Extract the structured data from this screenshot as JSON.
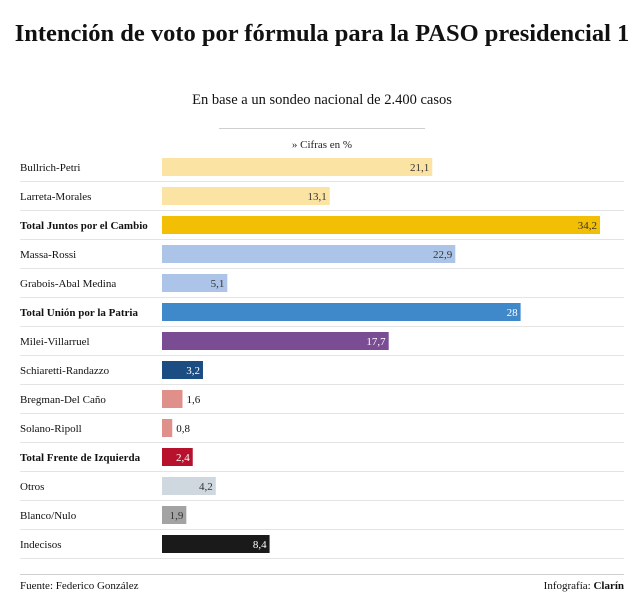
{
  "footer": {
    "source": "Fuente: Federico González",
    "credit_prefix": "Infografía:",
    "credit_brand": "Clarín"
  },
  "chart_data": {
    "type": "bar",
    "orientation": "horizontal",
    "title": "Intención de voto por fórmula para la PASO presidencial 1",
    "subtitle": "En base a un sondeo nacional de 2.400 casos",
    "unit_note": "» Cifras en %",
    "xlim": [
      0,
      34.2
    ],
    "grid": false,
    "rows": [
      {
        "label": "Bullrich-Petri",
        "value": 21.1,
        "display": "21,1",
        "color": "#fbe3a3",
        "total": false
      },
      {
        "label": "Larreta-Morales",
        "value": 13.1,
        "display": "13,1",
        "color": "#fbe3a3",
        "total": false
      },
      {
        "label": "Total Juntos por el Cambio",
        "value": 34.2,
        "display": "34,2",
        "color": "#f2bf04",
        "total": true
      },
      {
        "label": "Massa-Rossi",
        "value": 22.9,
        "display": "22,9",
        "color": "#acc4e7",
        "total": false
      },
      {
        "label": "Grabois-Abal Medina",
        "value": 5.1,
        "display": "5,1",
        "color": "#acc4e7",
        "total": false
      },
      {
        "label": "Total Unión por la Patria",
        "value": 28,
        "display": "28",
        "color": "#3f88c9",
        "total": true
      },
      {
        "label": "Milei-Villarruel",
        "value": 17.7,
        "display": "17,7",
        "color": "#7a4c94",
        "total": false
      },
      {
        "label": "Schiaretti-Randazzo",
        "value": 3.2,
        "display": "3,2",
        "color": "#1b4c82",
        "total": false
      },
      {
        "label": "Bregman-Del Caño",
        "value": 1.6,
        "display": "1,6",
        "color": "#e0908a",
        "total": false
      },
      {
        "label": "Solano-Ripoll",
        "value": 0.8,
        "display": "0,8",
        "color": "#e0908a",
        "total": false
      },
      {
        "label": "Total Frente de Izquierda",
        "value": 2.4,
        "display": "2,4",
        "color": "#b8112e",
        "total": true
      },
      {
        "label": "Otros",
        "value": 4.2,
        "display": "4,2",
        "color": "#cfd8de",
        "total": false
      },
      {
        "label": "Blanco/Nulo",
        "value": 1.9,
        "display": "1,9",
        "color": "#a3a3a3",
        "total": false
      },
      {
        "label": "Indecisos",
        "value": 8.4,
        "display": "8,4",
        "color": "#1a1a1a",
        "total": false
      }
    ]
  }
}
